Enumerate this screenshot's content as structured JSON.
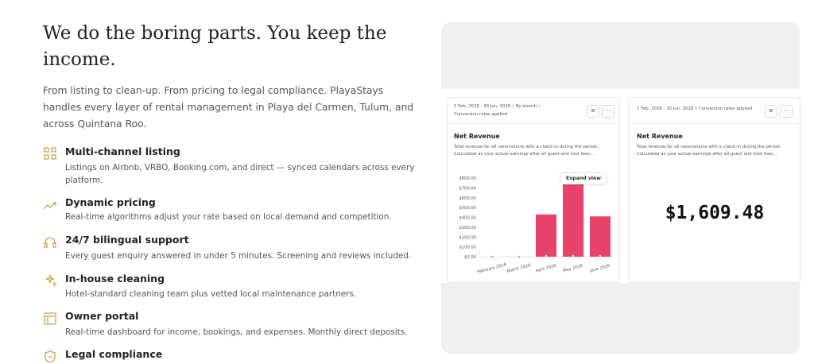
{
  "header": {
    "title": "We do the boring parts. You keep the income.",
    "intro": "From listing to clean-up. From pricing to legal compliance. PlayaStays handles every layer of rental management in Playa del Carmen, Tulum, and across Quintana Roo."
  },
  "features": [
    {
      "title": "Multi-channel listing",
      "description": "Listings on Airbnb, VRBO, Booking.com, and direct — synced calendars across every platform."
    },
    {
      "title": "Dynamic pricing",
      "description": "Real-time algorithms adjust your rate based on local demand and competition."
    },
    {
      "title": "24/7 bilingual support",
      "description": "Every guest enquiry answered in under 5 minutes. Screening and reviews included."
    },
    {
      "title": "In-house cleaning",
      "description": "Hotel-standard cleaning team plus vetted local maintenance partners."
    },
    {
      "title": "Owner portal",
      "description": "Real-time dashboard for income, bookings, and expenses. Monthly direct deposits."
    },
    {
      "title": "Legal compliance",
      "description": ""
    }
  ],
  "dashboard": {
    "revenue_card": {
      "range": "1 Feb, 2026 - 30 Jun, 2026 • By month •",
      "note": "Conversion rates applied",
      "title": "Net Revenue",
      "description": "Total revenue for all reservations with a check-in during the period. Calculated as your actual earnings after all guest and host fees...",
      "button": "Expand view",
      "chart": {
        "type": "bar",
        "color": "#e8436a",
        "categories": [
          "February 2026",
          "March 2026",
          "April 2026",
          "May 2026",
          "June 2026"
        ],
        "values": [
          0,
          0,
          430,
          740,
          410
        ],
        "ylim": [
          0,
          800
        ],
        "yticks": [
          {
            "value": 0,
            "label": "$0.00"
          },
          {
            "value": 100,
            "label": "$100.00"
          },
          {
            "value": 200,
            "label": "$200.00"
          },
          {
            "value": 300,
            "label": "$300.00"
          },
          {
            "value": 400,
            "label": "$400.00"
          },
          {
            "value": 500,
            "label": "$500.00"
          },
          {
            "value": 600,
            "label": "$600.00"
          },
          {
            "value": 700,
            "label": "$700.00"
          },
          {
            "value": 800,
            "label": "$800.00"
          }
        ],
        "grid": false
      }
    },
    "total_card": {
      "range": "1 Feb, 2026 - 30 Jun, 2026 • Conversion rates applied",
      "title": "Net Revenue",
      "description": "Total revenue for all reservations with a check-in during the period. Calculated as your actual earnings after all guest and host fees...",
      "total": "$1,609.48"
    }
  }
}
